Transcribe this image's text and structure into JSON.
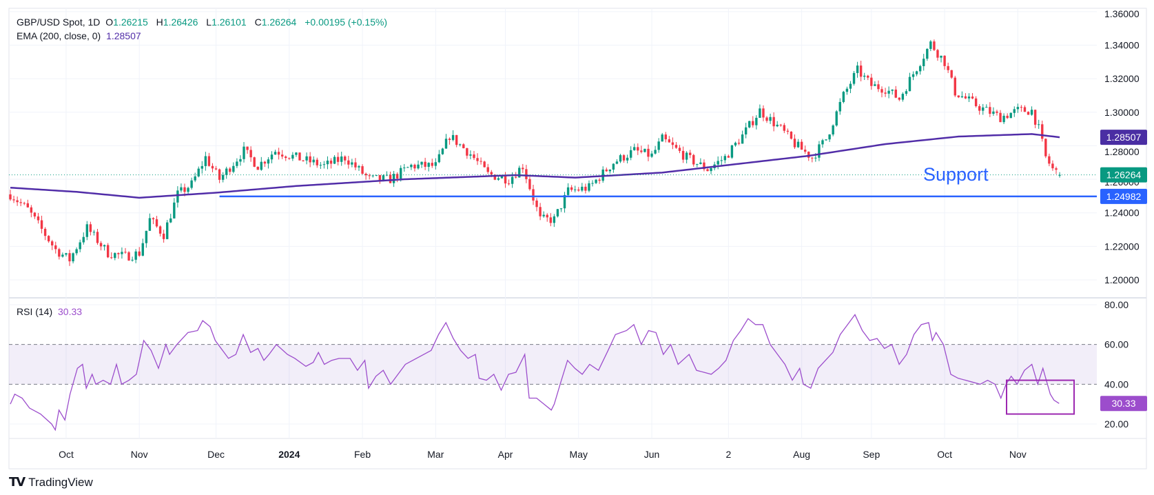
{
  "header": {
    "symbol": "GBP/USD Spot, 1D",
    "open_label": "O",
    "open": "1.26215",
    "high_label": "H",
    "high": "1.26426",
    "low_label": "L",
    "low": "1.26101",
    "close_label": "C",
    "close": "1.26264",
    "change": "+0.00195 (+0.15%)",
    "ema_label": "EMA (200, close, 0)",
    "ema_value": "1.28507",
    "rsi_label": "RSI (14)",
    "rsi_value": "30.33"
  },
  "annotation": {
    "support_text": "Support"
  },
  "branding": {
    "logo_text": "TradingView",
    "logo_mark": "TV"
  },
  "colors": {
    "up": "#089981",
    "down": "#f23645",
    "ema": "#512da8",
    "support": "#2962ff",
    "rsi": "#9c4dcc",
    "rsi_box": "#9c27b0"
  },
  "chart_data": [
    {
      "type": "candlestick",
      "title": "GBP/USD Spot, 1D",
      "ylim": [
        1.195,
        1.362
      ],
      "y_ticks": [
        "1.36000",
        "1.34000",
        "1.32000",
        "1.30000",
        "1.28000",
        "1.26000",
        "1.24000",
        "1.22000",
        "1.20000"
      ],
      "x_ticks": [
        {
          "label": "Oct",
          "day": 16
        },
        {
          "label": "Nov",
          "day": 37
        },
        {
          "label": "Dec",
          "day": 59
        },
        {
          "label": "2024",
          "day": 80,
          "bold": true
        },
        {
          "label": "Feb",
          "day": 101
        },
        {
          "label": "Mar",
          "day": 122
        },
        {
          "label": "Apr",
          "day": 142
        },
        {
          "label": "May",
          "day": 163
        },
        {
          "label": "Jun",
          "day": 184
        },
        {
          "label": "2",
          "day": 206
        },
        {
          "label": "Aug",
          "day": 227
        },
        {
          "label": "Sep",
          "day": 247
        },
        {
          "label": "Oct",
          "day": 268
        },
        {
          "label": "Nov",
          "day": 289
        }
      ],
      "days": 302,
      "close_keypoints": [
        [
          0,
          1.251
        ],
        [
          5,
          1.242
        ],
        [
          13,
          1.218
        ],
        [
          17,
          1.212
        ],
        [
          22,
          1.231
        ],
        [
          28,
          1.216
        ],
        [
          33,
          1.214
        ],
        [
          37,
          1.216
        ],
        [
          40,
          1.236
        ],
        [
          44,
          1.227
        ],
        [
          48,
          1.251
        ],
        [
          52,
          1.257
        ],
        [
          56,
          1.273
        ],
        [
          60,
          1.26
        ],
        [
          67,
          1.277
        ],
        [
          71,
          1.268
        ],
        [
          76,
          1.277
        ],
        [
          82,
          1.273
        ],
        [
          90,
          1.268
        ],
        [
          96,
          1.273
        ],
        [
          103,
          1.26
        ],
        [
          109,
          1.26
        ],
        [
          115,
          1.268
        ],
        [
          122,
          1.268
        ],
        [
          126,
          1.286
        ],
        [
          132,
          1.275
        ],
        [
          137,
          1.263
        ],
        [
          143,
          1.26
        ],
        [
          147,
          1.268
        ],
        [
          152,
          1.236
        ],
        [
          156,
          1.236
        ],
        [
          160,
          1.253
        ],
        [
          166,
          1.255
        ],
        [
          173,
          1.27
        ],
        [
          179,
          1.277
        ],
        [
          184,
          1.274
        ],
        [
          187,
          1.284
        ],
        [
          194,
          1.273
        ],
        [
          200,
          1.266
        ],
        [
          205,
          1.273
        ],
        [
          210,
          1.286
        ],
        [
          215,
          1.301
        ],
        [
          221,
          1.29
        ],
        [
          225,
          1.281
        ],
        [
          230,
          1.273
        ],
        [
          234,
          1.284
        ],
        [
          239,
          1.31
        ],
        [
          243,
          1.325
        ],
        [
          247,
          1.316
        ],
        [
          251,
          1.314
        ],
        [
          255,
          1.308
        ],
        [
          259,
          1.323
        ],
        [
          264,
          1.341
        ],
        [
          268,
          1.33
        ],
        [
          271,
          1.312
        ],
        [
          278,
          1.303
        ],
        [
          284,
          1.297
        ],
        [
          289,
          1.301
        ],
        [
          293,
          1.301
        ],
        [
          295,
          1.29
        ],
        [
          297,
          1.273
        ],
        [
          299,
          1.266
        ],
        [
          301,
          1.26264
        ]
      ],
      "ema": {
        "name": "EMA (200, close, 0)",
        "last": 1.28507,
        "keypoints": [
          [
            0,
            1.255
          ],
          [
            19,
            1.2525
          ],
          [
            37,
            1.249
          ],
          [
            59,
            1.252
          ],
          [
            82,
            1.256
          ],
          [
            113,
            1.26
          ],
          [
            145,
            1.2625
          ],
          [
            162,
            1.261
          ],
          [
            187,
            1.264
          ],
          [
            208,
            1.269
          ],
          [
            229,
            1.274
          ],
          [
            251,
            1.281
          ],
          [
            272,
            1.2855
          ],
          [
            293,
            1.287
          ],
          [
            301,
            1.28507
          ]
        ]
      },
      "support": {
        "label": "Support",
        "value": 1.24982,
        "value_text": "1.24982",
        "from_day": 60
      },
      "last_price": {
        "value": 1.26264,
        "text": "1.26264"
      },
      "ema_label": {
        "value": 1.28507,
        "text": "1.28507"
      }
    },
    {
      "type": "line",
      "title": "RSI (14)",
      "ylim": [
        10,
        84
      ],
      "y_ticks": [
        "80.00",
        "60.00",
        "40.00",
        "20.00"
      ],
      "band": [
        40,
        60
      ],
      "last": {
        "value": 30.33,
        "text": "30.33"
      },
      "highlight_box": {
        "from_day": 300,
        "to_day": 301,
        "from_value": 25,
        "to_value": 42
      },
      "trace_overview_keypoints": [
        [
          14,
          30
        ],
        [
          20,
          35
        ],
        [
          30,
          33
        ],
        [
          40,
          28
        ],
        [
          55,
          25
        ],
        [
          70,
          20
        ],
        [
          75,
          17
        ],
        [
          80,
          27
        ],
        [
          88,
          22
        ],
        [
          95,
          35
        ],
        [
          105,
          48
        ],
        [
          112,
          50
        ],
        [
          117,
          38
        ],
        [
          125,
          45
        ],
        [
          130,
          40
        ],
        [
          140,
          42
        ],
        [
          150,
          40
        ],
        [
          158,
          50
        ],
        [
          165,
          40
        ],
        [
          175,
          42
        ],
        [
          185,
          45
        ],
        [
          195,
          62
        ],
        [
          205,
          57
        ],
        [
          215,
          48
        ],
        [
          225,
          60
        ],
        [
          230,
          55
        ],
        [
          240,
          60
        ],
        [
          255,
          66
        ],
        [
          268,
          67
        ],
        [
          275,
          72
        ],
        [
          285,
          69
        ],
        [
          292,
          62
        ],
        [
          300,
          58
        ],
        [
          310,
          53
        ],
        [
          320,
          55
        ],
        [
          330,
          65
        ],
        [
          340,
          56
        ],
        [
          350,
          58
        ],
        [
          358,
          52
        ],
        [
          365,
          55
        ],
        [
          375,
          60
        ],
        [
          390,
          55
        ],
        [
          400,
          53
        ],
        [
          415,
          49
        ],
        [
          425,
          51
        ],
        [
          432,
          56
        ],
        [
          440,
          50
        ],
        [
          450,
          52
        ],
        [
          460,
          53
        ],
        [
          475,
          53
        ],
        [
          485,
          47
        ],
        [
          495,
          52
        ],
        [
          500,
          38
        ],
        [
          510,
          44
        ],
        [
          520,
          47
        ],
        [
          530,
          40
        ],
        [
          540,
          45
        ],
        [
          550,
          50
        ],
        [
          560,
          52
        ],
        [
          575,
          55
        ],
        [
          585,
          57
        ],
        [
          595,
          65
        ],
        [
          605,
          71
        ],
        [
          615,
          63
        ],
        [
          625,
          57
        ],
        [
          635,
          53
        ],
        [
          645,
          55
        ],
        [
          650,
          43
        ],
        [
          660,
          42
        ],
        [
          670,
          45
        ],
        [
          680,
          37
        ],
        [
          690,
          45
        ],
        [
          700,
          46
        ],
        [
          712,
          55
        ],
        [
          718,
          33
        ],
        [
          728,
          33
        ],
        [
          738,
          30
        ],
        [
          748,
          27
        ],
        [
          752,
          30
        ],
        [
          760,
          40
        ],
        [
          770,
          52
        ],
        [
          780,
          48
        ],
        [
          790,
          45
        ],
        [
          800,
          50
        ],
        [
          812,
          47
        ],
        [
          825,
          57
        ],
        [
          835,
          65
        ],
        [
          850,
          67
        ],
        [
          860,
          70
        ],
        [
          870,
          60
        ],
        [
          880,
          67
        ],
        [
          890,
          66
        ],
        [
          900,
          55
        ],
        [
          910,
          60
        ],
        [
          920,
          50
        ],
        [
          935,
          55
        ],
        [
          945,
          47
        ],
        [
          955,
          46
        ],
        [
          965,
          45
        ],
        [
          975,
          48
        ],
        [
          985,
          52
        ],
        [
          995,
          62
        ],
        [
          1005,
          67
        ],
        [
          1015,
          73
        ],
        [
          1025,
          70
        ],
        [
          1035,
          70
        ],
        [
          1045,
          60
        ],
        [
          1055,
          55
        ],
        [
          1065,
          50
        ],
        [
          1075,
          42
        ],
        [
          1085,
          48
        ],
        [
          1090,
          40
        ],
        [
          1100,
          38
        ],
        [
          1110,
          48
        ],
        [
          1120,
          52
        ],
        [
          1130,
          56
        ],
        [
          1140,
          65
        ],
        [
          1150,
          70
        ],
        [
          1160,
          75
        ],
        [
          1170,
          67
        ],
        [
          1180,
          62
        ],
        [
          1190,
          63
        ],
        [
          1200,
          58
        ],
        [
          1210,
          60
        ],
        [
          1220,
          50
        ],
        [
          1230,
          55
        ],
        [
          1240,
          65
        ],
        [
          1250,
          70
        ],
        [
          1260,
          71
        ],
        [
          1265,
          62
        ],
        [
          1270,
          66
        ],
        [
          1280,
          60
        ],
        [
          1290,
          45
        ],
        [
          1300,
          43
        ],
        [
          1310,
          42
        ],
        [
          1320,
          41
        ],
        [
          1330,
          40
        ],
        [
          1340,
          42
        ],
        [
          1350,
          40
        ],
        [
          1358,
          33
        ],
        [
          1365,
          40
        ],
        [
          1372,
          44
        ],
        [
          1380,
          40
        ],
        [
          1390,
          47
        ],
        [
          1400,
          50
        ],
        [
          1408,
          40
        ],
        [
          1415,
          48
        ],
        [
          1425,
          35
        ],
        [
          1430,
          32
        ],
        [
          1437,
          30.33
        ]
      ]
    }
  ]
}
